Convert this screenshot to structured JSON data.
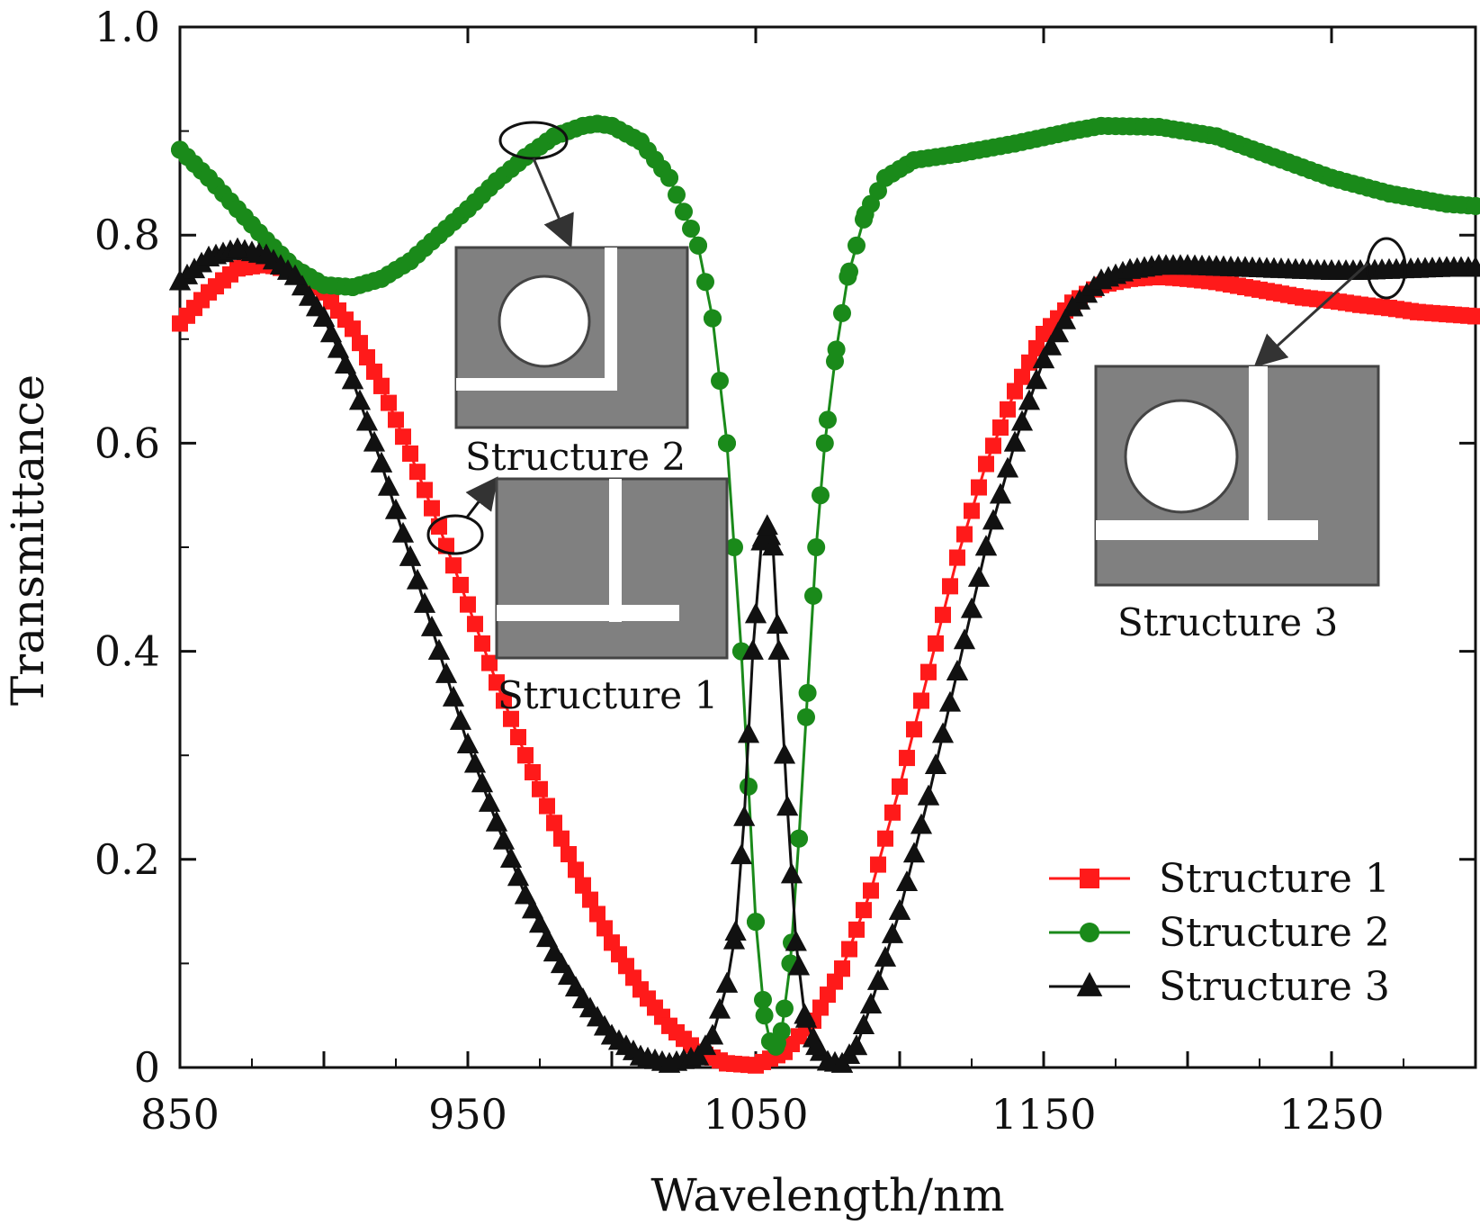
{
  "chart_data": {
    "type": "line",
    "xlabel": "Wavelength/nm",
    "ylabel": "Transmittance",
    "xlim": [
      850,
      1300
    ],
    "ylim": [
      0,
      1.0
    ],
    "x_ticks": [
      850,
      950,
      1050,
      1150,
      1250
    ],
    "x_tick_labels": [
      "850",
      "950",
      "1050",
      "1150",
      "1250"
    ],
    "y_ticks": [
      0,
      0.2,
      0.4,
      0.6,
      0.8,
      1.0
    ],
    "y_tick_labels": [
      "0",
      "0.2",
      "0.4",
      "0.6",
      "0.8",
      "1.0"
    ],
    "grid": false,
    "legend_position": "bottom-right",
    "series": [
      {
        "name": "Structure 1",
        "color": "#ff1a1a",
        "marker": "square",
        "points": [
          [
            850,
            0.715
          ],
          [
            860,
            0.745
          ],
          [
            870,
            0.768
          ],
          [
            880,
            0.772
          ],
          [
            890,
            0.765
          ],
          [
            900,
            0.745
          ],
          [
            910,
            0.71
          ],
          [
            920,
            0.655
          ],
          [
            930,
            0.59
          ],
          [
            940,
            0.52
          ],
          [
            950,
            0.445
          ],
          [
            960,
            0.37
          ],
          [
            970,
            0.3
          ],
          [
            980,
            0.235
          ],
          [
            990,
            0.175
          ],
          [
            1000,
            0.12
          ],
          [
            1010,
            0.075
          ],
          [
            1020,
            0.04
          ],
          [
            1030,
            0.015
          ],
          [
            1040,
            0.004
          ],
          [
            1050,
            0.002
          ],
          [
            1060,
            0.015
          ],
          [
            1070,
            0.045
          ],
          [
            1080,
            0.095
          ],
          [
            1090,
            0.17
          ],
          [
            1100,
            0.27
          ],
          [
            1110,
            0.38
          ],
          [
            1120,
            0.49
          ],
          [
            1130,
            0.58
          ],
          [
            1140,
            0.65
          ],
          [
            1150,
            0.705
          ],
          [
            1160,
            0.735
          ],
          [
            1170,
            0.752
          ],
          [
            1180,
            0.758
          ],
          [
            1190,
            0.76
          ],
          [
            1200,
            0.758
          ],
          [
            1210,
            0.755
          ],
          [
            1220,
            0.75
          ],
          [
            1230,
            0.745
          ],
          [
            1240,
            0.74
          ],
          [
            1250,
            0.737
          ],
          [
            1260,
            0.733
          ],
          [
            1270,
            0.73
          ],
          [
            1280,
            0.726
          ],
          [
            1290,
            0.724
          ],
          [
            1300,
            0.722
          ]
        ]
      },
      {
        "name": "Structure 2",
        "color": "#1a8a1a",
        "marker": "circle",
        "points": [
          [
            850,
            0.882
          ],
          [
            860,
            0.855
          ],
          [
            870,
            0.825
          ],
          [
            880,
            0.795
          ],
          [
            890,
            0.768
          ],
          [
            900,
            0.752
          ],
          [
            910,
            0.75
          ],
          [
            920,
            0.758
          ],
          [
            930,
            0.775
          ],
          [
            940,
            0.8
          ],
          [
            950,
            0.825
          ],
          [
            960,
            0.852
          ],
          [
            970,
            0.875
          ],
          [
            980,
            0.895
          ],
          [
            990,
            0.905
          ],
          [
            995,
            0.907
          ],
          [
            1000,
            0.905
          ],
          [
            1010,
            0.89
          ],
          [
            1020,
            0.855
          ],
          [
            1030,
            0.79
          ],
          [
            1035,
            0.72
          ],
          [
            1040,
            0.6
          ],
          [
            1045,
            0.4
          ],
          [
            1050,
            0.14
          ],
          [
            1053,
            0.05
          ],
          [
            1055,
            0.025
          ],
          [
            1057,
            0.02
          ],
          [
            1059,
            0.035
          ],
          [
            1062,
            0.1
          ],
          [
            1065,
            0.22
          ],
          [
            1068,
            0.36
          ],
          [
            1071,
            0.5
          ],
          [
            1074,
            0.6
          ],
          [
            1078,
            0.69
          ],
          [
            1082,
            0.76
          ],
          [
            1088,
            0.82
          ],
          [
            1095,
            0.855
          ],
          [
            1105,
            0.872
          ],
          [
            1120,
            0.878
          ],
          [
            1140,
            0.888
          ],
          [
            1160,
            0.9
          ],
          [
            1170,
            0.905
          ],
          [
            1190,
            0.904
          ],
          [
            1210,
            0.895
          ],
          [
            1230,
            0.875
          ],
          [
            1250,
            0.855
          ],
          [
            1270,
            0.84
          ],
          [
            1290,
            0.83
          ],
          [
            1300,
            0.828
          ]
        ]
      },
      {
        "name": "Structure 3",
        "color": "#111111",
        "marker": "triangle",
        "points": [
          [
            850,
            0.755
          ],
          [
            860,
            0.778
          ],
          [
            870,
            0.786
          ],
          [
            880,
            0.78
          ],
          [
            890,
            0.76
          ],
          [
            900,
            0.72
          ],
          [
            910,
            0.66
          ],
          [
            920,
            0.58
          ],
          [
            930,
            0.49
          ],
          [
            940,
            0.4
          ],
          [
            950,
            0.31
          ],
          [
            960,
            0.235
          ],
          [
            970,
            0.165
          ],
          [
            980,
            0.11
          ],
          [
            990,
            0.065
          ],
          [
            1000,
            0.03
          ],
          [
            1010,
            0.01
          ],
          [
            1020,
            0.003
          ],
          [
            1030,
            0.01
          ],
          [
            1035,
            0.03
          ],
          [
            1040,
            0.08
          ],
          [
            1043,
            0.13
          ],
          [
            1046,
            0.24
          ],
          [
            1049,
            0.4
          ],
          [
            1052,
            0.505
          ],
          [
            1054,
            0.52
          ],
          [
            1056,
            0.5
          ],
          [
            1058,
            0.4
          ],
          [
            1061,
            0.25
          ],
          [
            1064,
            0.12
          ],
          [
            1067,
            0.05
          ],
          [
            1071,
            0.02
          ],
          [
            1075,
            0.005
          ],
          [
            1080,
            0.003
          ],
          [
            1085,
            0.02
          ],
          [
            1090,
            0.06
          ],
          [
            1100,
            0.15
          ],
          [
            1110,
            0.26
          ],
          [
            1120,
            0.38
          ],
          [
            1130,
            0.5
          ],
          [
            1140,
            0.6
          ],
          [
            1150,
            0.68
          ],
          [
            1160,
            0.73
          ],
          [
            1170,
            0.756
          ],
          [
            1180,
            0.766
          ],
          [
            1190,
            0.77
          ],
          [
            1200,
            0.77
          ],
          [
            1210,
            0.769
          ],
          [
            1220,
            0.768
          ],
          [
            1230,
            0.767
          ],
          [
            1240,
            0.766
          ],
          [
            1250,
            0.765
          ],
          [
            1260,
            0.765
          ],
          [
            1270,
            0.766
          ],
          [
            1280,
            0.767
          ],
          [
            1290,
            0.768
          ],
          [
            1300,
            0.768
          ]
        ]
      }
    ],
    "annotations": [
      "Structure 2",
      "Structure 1",
      "Structure 3"
    ]
  }
}
